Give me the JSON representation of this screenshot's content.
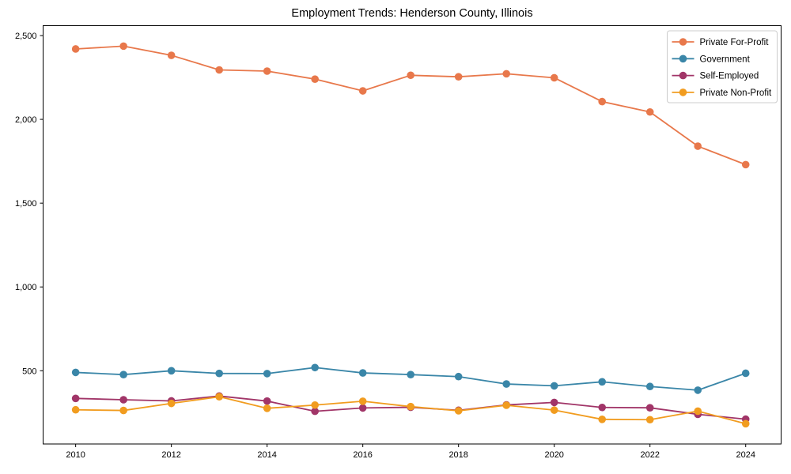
{
  "title": "Employment Trends: Henderson County, Illinois",
  "chart_data": {
    "type": "line",
    "title": "Employment Trends: Henderson County, Illinois",
    "xlabel": "",
    "ylabel": "",
    "x": [
      2010,
      2011,
      2012,
      2013,
      2014,
      2015,
      2016,
      2017,
      2018,
      2019,
      2020,
      2021,
      2022,
      2023,
      2024
    ],
    "series": [
      {
        "name": "Private For-Profit",
        "color": "#e8784b",
        "values": [
          2420,
          2437,
          2382,
          2295,
          2288,
          2240,
          2170,
          2263,
          2254,
          2272,
          2248,
          2106,
          2044,
          1840,
          1730
        ]
      },
      {
        "name": "Government",
        "color": "#3a86a8",
        "values": [
          490,
          477,
          500,
          484,
          483,
          519,
          487,
          477,
          465,
          421,
          410,
          434,
          406,
          384,
          485
        ]
      },
      {
        "name": "Self-Employed",
        "color": "#a13568",
        "values": [
          335,
          327,
          320,
          349,
          319,
          258,
          278,
          282,
          264,
          296,
          311,
          281,
          279,
          240,
          211
        ]
      },
      {
        "name": "Private Non-Profit",
        "color": "#f19c1f",
        "values": [
          267,
          263,
          305,
          345,
          276,
          295,
          318,
          286,
          261,
          294,
          265,
          210,
          208,
          259,
          184
        ]
      }
    ],
    "xticks": [
      2010,
      2012,
      2014,
      2016,
      2018,
      2020,
      2022,
      2024
    ],
    "yticks": [
      {
        "value": 500,
        "label": "500"
      },
      {
        "value": 1000,
        "label": "1,000"
      },
      {
        "value": 1500,
        "label": "1,500"
      },
      {
        "value": 2000,
        "label": "2,000"
      },
      {
        "value": 2500,
        "label": "2,500"
      }
    ],
    "xlim": [
      2009.32,
      2024.74
    ],
    "ylim": [
      63,
      2559
    ],
    "grid": false,
    "legend_position": "upper right",
    "marker": "circle"
  },
  "colors": {
    "background": "#ffffff",
    "spine": "#000000",
    "tick_text": "#000000",
    "legend_border": "#cccccc",
    "legend_fill": "#ffffff"
  }
}
